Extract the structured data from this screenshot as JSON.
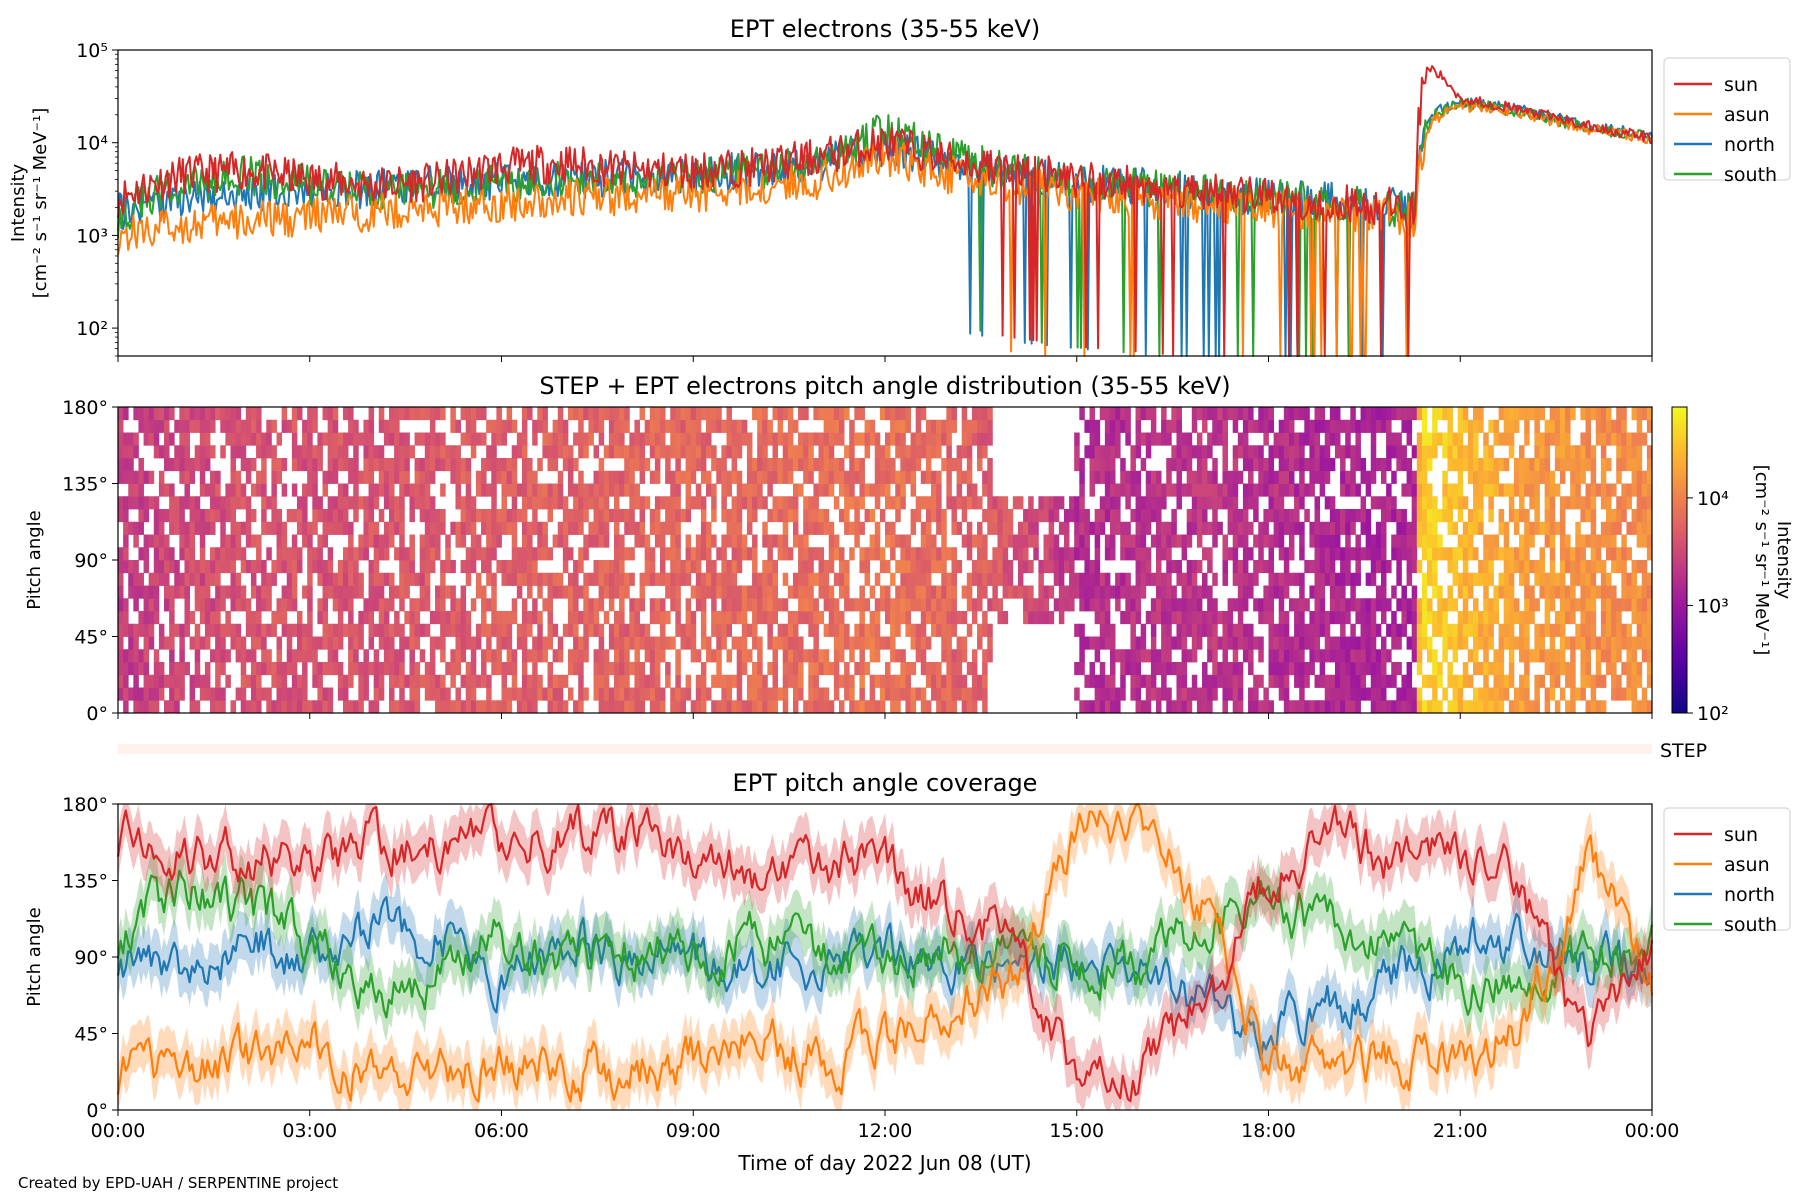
{
  "footer": {
    "credit": "Created by EPD-UAH / SERPENTINE project"
  },
  "colors": {
    "sun": "#d62728",
    "asun": "#ff7f0e",
    "north": "#1f77b4",
    "south": "#2ca02c"
  },
  "chart_data": [
    {
      "type": "line",
      "title": "EPT electrons (35-55 keV)",
      "ylabel": "Intensity",
      "ylabel_units": "[cm⁻² s⁻¹ sr⁻¹ MeV⁻¹]",
      "yscale": "log",
      "ylim": [
        50,
        100000
      ],
      "yticks": [
        "10²",
        "10³",
        "10⁴",
        "10⁵"
      ],
      "xlim_hours": [
        0,
        24
      ],
      "legend": {
        "placement": "outside-right",
        "entries": [
          "sun",
          "asun",
          "north",
          "south"
        ]
      },
      "series": [
        {
          "name": "sun",
          "color": "#d62728",
          "x_hours": [
            0,
            1,
            2,
            3,
            4,
            5,
            6,
            7,
            8,
            9,
            10,
            11,
            12,
            13,
            14,
            15,
            16,
            17,
            18,
            19,
            20,
            20.3,
            20.5,
            21,
            22,
            23,
            24
          ],
          "values": [
            2500,
            4500,
            5000,
            4000,
            3500,
            3800,
            5500,
            6000,
            5000,
            5000,
            5500,
            7000,
            10000,
            6500,
            5000,
            4000,
            3500,
            3000,
            2500,
            2200,
            2000,
            2000,
            65000,
            30000,
            22000,
            15000,
            11000
          ]
        },
        {
          "name": "asun",
          "color": "#ff7f0e",
          "x_hours": [
            0,
            1,
            2,
            3,
            4,
            5,
            6,
            7,
            8,
            9,
            10,
            11,
            12,
            13,
            14,
            15,
            16,
            17,
            18,
            19,
            20,
            20.3,
            20.6,
            21,
            22,
            23,
            24
          ],
          "values": [
            1000,
            1300,
            1400,
            1600,
            1800,
            2000,
            2200,
            2500,
            2600,
            2800,
            3200,
            4000,
            7000,
            4500,
            3500,
            3000,
            2500,
            2200,
            2000,
            1800,
            1600,
            1500,
            18000,
            25000,
            20000,
            14000,
            11000
          ]
        },
        {
          "name": "north",
          "color": "#1f77b4",
          "x_hours": [
            0,
            1,
            2,
            3,
            4,
            5,
            6,
            7,
            8,
            9,
            10,
            11,
            12,
            13,
            14,
            15,
            16,
            17,
            18,
            19,
            20,
            20.3,
            20.6,
            21,
            22,
            23,
            24
          ],
          "values": [
            1800,
            2500,
            2800,
            3000,
            3200,
            3500,
            3800,
            4000,
            4200,
            4500,
            5000,
            6000,
            9000,
            6000,
            4500,
            3800,
            3300,
            2900,
            2600,
            2300,
            2000,
            1900,
            22000,
            28000,
            22000,
            15000,
            12000
          ]
        },
        {
          "name": "south",
          "color": "#2ca02c",
          "x_hours": [
            0,
            1,
            2,
            3,
            4,
            5,
            6,
            7,
            8,
            9,
            10,
            11,
            12,
            13,
            14,
            15,
            16,
            17,
            18,
            19,
            20,
            20.3,
            20.6,
            21,
            22,
            23,
            24
          ],
          "values": [
            1500,
            3500,
            4500,
            3500,
            3000,
            3200,
            3600,
            3900,
            4000,
            4400,
            5000,
            6500,
            13000,
            7000,
            4800,
            3900,
            3300,
            2800,
            2500,
            2200,
            1900,
            1800,
            20000,
            27000,
            21000,
            14000,
            11500
          ]
        }
      ]
    },
    {
      "type": "heatmap",
      "title": "STEP + EPT electrons pitch angle distribution (35-55 keV)",
      "ylabel": "Pitch angle",
      "yticks": [
        "0°",
        "45°",
        "90°",
        "135°",
        "180°"
      ],
      "ylim": [
        0,
        180
      ],
      "xlim_hours": [
        0,
        24
      ],
      "colorbar": {
        "label": "Intensity",
        "units": "[cm⁻² s⁻¹ sr⁻¹ MeV⁻¹]",
        "scale": "log",
        "range": [
          100,
          70000
        ],
        "ticks": [
          "10²",
          "10³",
          "10⁴"
        ],
        "colormap": "plasma"
      },
      "intensity_profile": {
        "x_hours": [
          0,
          2,
          4,
          6,
          8,
          10,
          12,
          14,
          15,
          17,
          19,
          20.3,
          20.4,
          21,
          22,
          23,
          24
        ],
        "values": [
          2000,
          3500,
          3500,
          4500,
          5000,
          5500,
          7000,
          3500,
          1500,
          1800,
          1300,
          1200,
          40000,
          25000,
          15000,
          12000,
          11000
        ]
      },
      "gap_hours": [
        [
          13.7,
          15.0
        ]
      ]
    },
    {
      "type": "line",
      "strip_label": "STEP",
      "title": "EPT pitch angle coverage",
      "xlabel": "Time of day 2022 Jun 08 (UT)",
      "ylabel": "Pitch angle",
      "ylim": [
        0,
        180
      ],
      "yticks": [
        "0°",
        "45°",
        "90°",
        "135°",
        "180°"
      ],
      "xlim_hours": [
        0,
        24
      ],
      "xticks": [
        "00:00",
        "03:00",
        "06:00",
        "09:00",
        "12:00",
        "15:00",
        "18:00",
        "21:00",
        "00:00"
      ],
      "legend": {
        "placement": "outside-right",
        "entries": [
          "sun",
          "asun",
          "north",
          "south"
        ]
      },
      "series": [
        {
          "name": "sun",
          "color": "#d62728",
          "x_hours": [
            0,
            1,
            2,
            3,
            4,
            5,
            6,
            7,
            8,
            9,
            10,
            11,
            12,
            13,
            14,
            15,
            16,
            17,
            18,
            19,
            20,
            21,
            22,
            23,
            24
          ],
          "values": [
            160,
            150,
            150,
            140,
            160,
            155,
            160,
            160,
            165,
            150,
            140,
            150,
            140,
            120,
            100,
            20,
            20,
            60,
            140,
            160,
            150,
            150,
            130,
            30,
            100
          ]
        },
        {
          "name": "asun",
          "color": "#ff7f0e",
          "x_hours": [
            0,
            1,
            2,
            3,
            4,
            5,
            6,
            7,
            8,
            9,
            10,
            11,
            12,
            13,
            14,
            15,
            16,
            17,
            18,
            19,
            20,
            21,
            22,
            23,
            24
          ],
          "values": [
            20,
            25,
            30,
            40,
            20,
            25,
            30,
            25,
            20,
            30,
            40,
            30,
            40,
            60,
            80,
            160,
            170,
            120,
            30,
            25,
            30,
            30,
            50,
            150,
            70
          ]
        },
        {
          "name": "north",
          "color": "#1f77b4",
          "x_hours": [
            0,
            1,
            2,
            3,
            4,
            5,
            6,
            7,
            8,
            9,
            10,
            11,
            12,
            13,
            14,
            15,
            16,
            17,
            18,
            19,
            20,
            21,
            22,
            23,
            24
          ],
          "values": [
            90,
            80,
            100,
            90,
            110,
            100,
            80,
            100,
            90,
            85,
            80,
            90,
            95,
            85,
            90,
            90,
            90,
            60,
            50,
            60,
            80,
            95,
            100,
            90,
            85
          ]
        },
        {
          "name": "south",
          "color": "#2ca02c",
          "x_hours": [
            0,
            1,
            2,
            3,
            4,
            5,
            6,
            7,
            8,
            9,
            10,
            11,
            12,
            13,
            14,
            15,
            16,
            17,
            18,
            19,
            20,
            21,
            22,
            23,
            24
          ],
          "values": [
            100,
            130,
            120,
            100,
            70,
            80,
            100,
            85,
            90,
            95,
            100,
            90,
            85,
            95,
            90,
            90,
            80,
            110,
            120,
            110,
            90,
            80,
            70,
            90,
            95
          ]
        }
      ]
    }
  ]
}
